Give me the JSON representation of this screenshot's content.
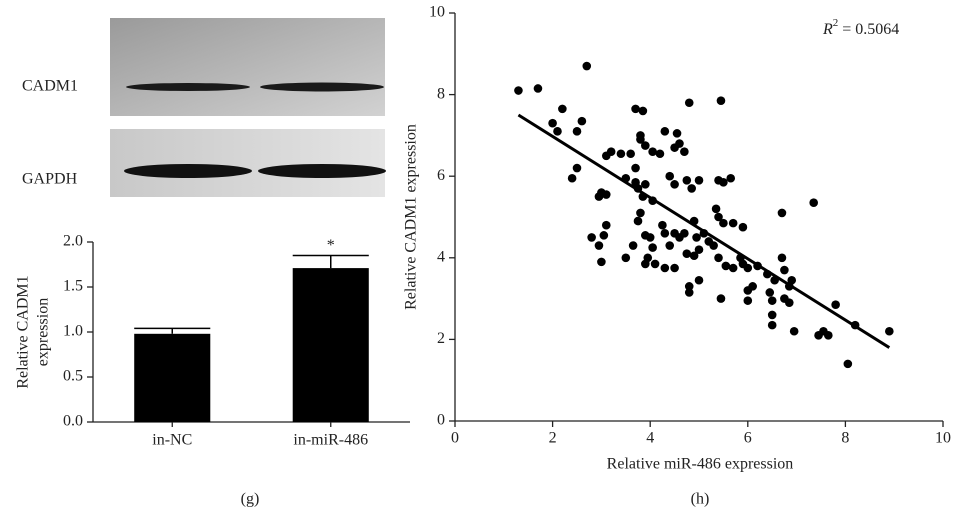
{
  "blot": {
    "labels": [
      "CADM1",
      "GAPDH"
    ]
  },
  "chart_data": [
    {
      "type": "bar",
      "panel_label": "(g)",
      "y_label": [
        "Relative CADM1",
        "expression"
      ],
      "categories": [
        "in-NC",
        "in-miR-486"
      ],
      "values": [
        0.98,
        1.71
      ],
      "errors": [
        0.06,
        0.14
      ],
      "annotations": [
        null,
        "*"
      ],
      "color": "#000000",
      "ylim": [
        0,
        2.0
      ],
      "yticks": [
        {
          "value": 0,
          "label": "0.0"
        },
        0.5,
        {
          "value": 1,
          "label": "1.0"
        },
        1.5,
        {
          "value": 2,
          "label": "2.0"
        }
      ]
    },
    {
      "type": "scatter",
      "panel_label": "(h)",
      "x_label": "Relative miR-486 expression",
      "y_label": "Relative CADM1 expression",
      "annotation": [
        "R",
        "2",
        " = 0.5064"
      ],
      "xlim": [
        0,
        10
      ],
      "ylim": [
        0,
        10
      ],
      "xticks": [
        0,
        2,
        4,
        6,
        8,
        10
      ],
      "yticks": [
        0,
        2,
        4,
        6,
        8,
        10
      ],
      "trendline": {
        "x": [
          1.3,
          8.9
        ],
        "y": [
          7.5,
          1.8
        ]
      },
      "series": [
        {
          "color": "#000000",
          "x": [
            1.3,
            1.7,
            2.7,
            2.0,
            2.1,
            2.2,
            2.6,
            2.5,
            3.7,
            3.85,
            4.8,
            5.45,
            3.8,
            3.9,
            3.8,
            4.3,
            4.05,
            4.2,
            3.2,
            3.1,
            3.4,
            3.6,
            4.5,
            4.55,
            4.6,
            4.7,
            2.5,
            2.4,
            3.0,
            3.1,
            2.95,
            3.5,
            3.7,
            3.75,
            3.9,
            4.5,
            4.75,
            4.85,
            5.0,
            5.4,
            5.5,
            5.65,
            3.7,
            4.4,
            3.85,
            4.05,
            5.35,
            5.4,
            4.9,
            5.5,
            5.7,
            5.9,
            6.7,
            7.35,
            3.1,
            2.8,
            3.05,
            2.95,
            3.5,
            3.65,
            3.75,
            3.8,
            3.9,
            4.0,
            4.05,
            3.95,
            4.1,
            4.25,
            4.3,
            4.4,
            4.5,
            4.6,
            4.7,
            4.75,
            4.9,
            4.95,
            5.0,
            5.1,
            5.2,
            5.3,
            5.4,
            5.55,
            5.7,
            5.85,
            5.9,
            6.0,
            6.2,
            6.4,
            6.7,
            6.75,
            6.55,
            6.85,
            6.9,
            3.0,
            3.9,
            4.3,
            4.5,
            4.8,
            4.8,
            5.0,
            5.45,
            6.0,
            6.0,
            6.1,
            6.45,
            6.5,
            6.5,
            6.5,
            6.75,
            6.85,
            6.95,
            7.45,
            7.55,
            7.65,
            7.8,
            8.2,
            8.05,
            8.9
          ],
          "values": [
            8.1,
            8.15,
            8.7,
            7.3,
            7.1,
            7.65,
            7.35,
            7.1,
            7.65,
            7.6,
            7.8,
            7.85,
            7.0,
            6.75,
            6.9,
            7.1,
            6.6,
            6.55,
            6.6,
            6.5,
            6.55,
            6.55,
            6.7,
            7.05,
            6.8,
            6.6,
            6.2,
            5.95,
            5.6,
            5.55,
            5.5,
            5.95,
            5.85,
            5.7,
            5.8,
            5.8,
            5.9,
            5.7,
            5.9,
            5.9,
            5.85,
            5.95,
            6.2,
            6.0,
            5.5,
            5.4,
            5.2,
            5.0,
            4.9,
            4.85,
            4.85,
            4.75,
            5.1,
            5.35,
            4.8,
            4.5,
            4.55,
            4.3,
            4.0,
            4.3,
            4.9,
            5.1,
            4.55,
            4.5,
            4.25,
            4.0,
            3.85,
            4.8,
            4.6,
            4.3,
            4.6,
            4.5,
            4.6,
            4.1,
            4.05,
            4.5,
            4.2,
            4.6,
            4.4,
            4.3,
            4.0,
            3.8,
            3.75,
            4.0,
            3.85,
            3.75,
            3.8,
            3.6,
            4.0,
            3.7,
            3.45,
            3.3,
            3.45,
            3.9,
            3.85,
            3.75,
            3.75,
            3.3,
            3.15,
            3.45,
            3.0,
            3.2,
            2.95,
            3.3,
            3.15,
            2.95,
            2.6,
            2.35,
            3.0,
            2.9,
            2.2,
            2.1,
            2.2,
            2.1,
            2.85,
            2.35,
            1.4,
            2.2
          ]
        }
      ]
    }
  ]
}
